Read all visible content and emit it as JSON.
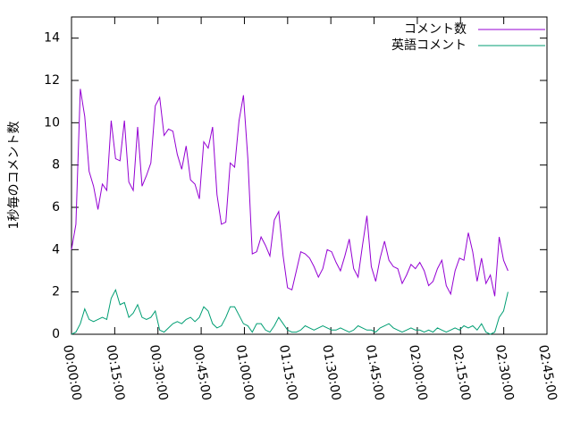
{
  "chart_data": {
    "type": "line",
    "ylabel": "1秒毎のコメント数",
    "x": [
      0,
      1.53,
      3.06,
      4.59,
      6.12,
      7.65,
      9.18,
      10.71,
      12.24,
      13.77,
      15.3,
      16.83,
      18.36,
      19.89,
      21.42,
      22.95,
      24.48,
      26.01,
      27.54,
      29.07,
      30.6,
      32.13,
      33.66,
      35.19,
      36.72,
      38.25,
      39.78,
      41.31,
      42.84,
      44.37,
      45.9,
      47.43,
      48.96,
      50.49,
      52.02,
      53.55,
      55.08,
      56.61,
      58.14,
      59.67,
      61.2,
      62.73,
      64.26,
      65.79,
      67.32,
      68.85,
      70.38,
      71.91,
      73.44,
      74.97,
      76.5,
      78.03,
      79.56,
      81.09,
      82.62,
      84.15,
      85.68,
      87.21,
      88.74,
      90.27,
      91.8,
      93.33,
      94.86,
      96.39,
      97.92,
      99.45,
      100.98,
      102.51,
      104.04,
      105.57,
      107.1,
      108.63,
      110.16,
      111.69,
      113.22,
      114.75,
      116.28,
      117.81,
      119.34,
      120.87,
      122.4,
      123.93,
      125.46,
      126.99,
      128.52,
      130.05,
      131.58,
      133.11,
      134.64,
      136.17,
      137.7,
      139.23,
      140.76,
      142.29,
      143.82,
      145.35,
      146.88,
      148.41,
      149.94,
      151.47
    ],
    "series": [
      {
        "name": "コメント数",
        "color": "#9400d3",
        "values": [
          4.0,
          5.2,
          11.6,
          10.3,
          7.7,
          7.0,
          5.9,
          7.1,
          6.8,
          10.1,
          8.3,
          8.2,
          10.1,
          7.2,
          6.8,
          9.8,
          7.0,
          7.5,
          8.1,
          10.8,
          11.2,
          9.4,
          9.7,
          9.6,
          8.5,
          7.8,
          8.9,
          7.3,
          7.1,
          6.4,
          9.1,
          8.8,
          9.8,
          6.6,
          5.2,
          5.3,
          8.1,
          7.9,
          10.1,
          11.3,
          8.3,
          3.8,
          3.9,
          4.6,
          4.2,
          3.7,
          5.4,
          5.8,
          3.7,
          2.2,
          2.1,
          3.0,
          3.9,
          3.8,
          3.6,
          3.2,
          2.7,
          3.1,
          4.0,
          3.9,
          3.4,
          3.0,
          3.7,
          4.5,
          3.1,
          2.7,
          4.2,
          5.6,
          3.2,
          2.5,
          3.6,
          4.4,
          3.5,
          3.2,
          3.1,
          2.4,
          2.8,
          3.3,
          3.1,
          3.4,
          3.0,
          2.3,
          2.5,
          3.1,
          3.5,
          2.3,
          1.9,
          3.0,
          3.6,
          3.5,
          4.8,
          3.9,
          2.5,
          3.6,
          2.4,
          2.8,
          1.8,
          4.6,
          3.5,
          3.0
        ]
      },
      {
        "name": "英語コメント",
        "color": "#009e73",
        "values": [
          0,
          0.1,
          0.5,
          1.2,
          0.7,
          0.6,
          0.7,
          0.8,
          0.7,
          1.7,
          2.1,
          1.4,
          1.5,
          0.8,
          1.0,
          1.4,
          0.8,
          0.7,
          0.8,
          1.1,
          0.2,
          0.1,
          0.3,
          0.5,
          0.6,
          0.5,
          0.7,
          0.8,
          0.6,
          0.8,
          1.3,
          1.1,
          0.5,
          0.3,
          0.4,
          0.8,
          1.3,
          1.3,
          0.9,
          0.5,
          0.4,
          0.1,
          0.5,
          0.5,
          0.2,
          0.1,
          0.4,
          0.8,
          0.5,
          0.2,
          0.1,
          0.1,
          0.2,
          0.4,
          0.3,
          0.2,
          0.3,
          0.4,
          0.3,
          0.2,
          0.2,
          0.3,
          0.2,
          0.1,
          0.2,
          0.4,
          0.3,
          0.2,
          0.2,
          0.1,
          0.3,
          0.4,
          0.5,
          0.3,
          0.2,
          0.1,
          0.2,
          0.3,
          0.2,
          0.2,
          0.1,
          0.2,
          0.1,
          0.3,
          0.2,
          0.1,
          0.2,
          0.3,
          0.2,
          0.4,
          0.3,
          0.4,
          0.2,
          0.5,
          0.1,
          0.0,
          0.1,
          0.8,
          1.1,
          2.0
        ]
      }
    ],
    "xlim": [
      0,
      165
    ],
    "xticks": [
      {
        "value": 0,
        "label": "00:00:00"
      },
      {
        "value": 15,
        "label": "00:15:00"
      },
      {
        "value": 30,
        "label": "00:30:00"
      },
      {
        "value": 45,
        "label": "00:45:00"
      },
      {
        "value": 60,
        "label": "01:00:00"
      },
      {
        "value": 75,
        "label": "01:15:00"
      },
      {
        "value": 90,
        "label": "01:30:00"
      },
      {
        "value": 105,
        "label": "01:45:00"
      },
      {
        "value": 120,
        "label": "02:00:00"
      },
      {
        "value": 135,
        "label": "02:15:00"
      },
      {
        "value": 150,
        "label": "02:30:00"
      },
      {
        "value": 165,
        "label": "02:45:00"
      }
    ],
    "ylim": [
      0,
      15
    ],
    "yticks": [
      0,
      2,
      4,
      6,
      8,
      10,
      12,
      14
    ],
    "legend": "upper right"
  }
}
